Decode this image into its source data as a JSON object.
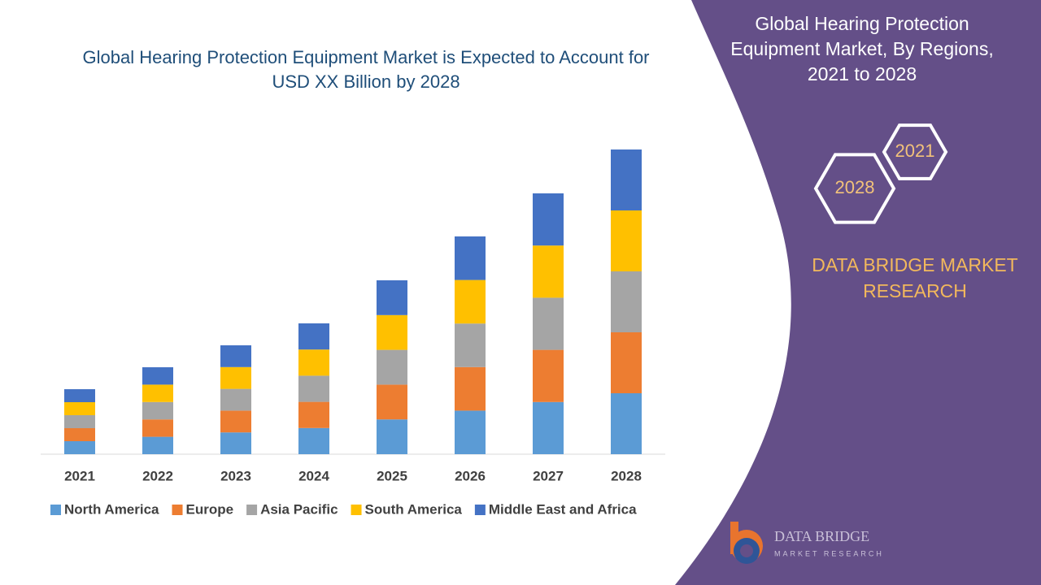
{
  "chart_data": {
    "type": "bar",
    "stacked": true,
    "title": "Global Hearing Protection Equipment Market is Expected to Account for USD XX Billion by 2028",
    "categories": [
      "2021",
      "2022",
      "2023",
      "2024",
      "2025",
      "2026",
      "2027",
      "2028"
    ],
    "series": [
      {
        "name": "North America",
        "color": "#5b9bd5",
        "values": [
          16,
          21.4,
          26.8,
          32.2,
          42.8,
          53.6,
          64.2,
          75
        ]
      },
      {
        "name": "Europe",
        "color": "#ed7d31",
        "values": [
          16,
          21.4,
          26.8,
          32.2,
          42.8,
          53.6,
          64.2,
          75
        ]
      },
      {
        "name": "Asia Pacific",
        "color": "#a5a5a5",
        "values": [
          16,
          21.4,
          26.8,
          32.2,
          42.8,
          53.6,
          64.2,
          75
        ]
      },
      {
        "name": "South America",
        "color": "#ffc000",
        "values": [
          16,
          21.4,
          26.8,
          32.2,
          42.8,
          53.6,
          64.2,
          75
        ]
      },
      {
        "name": "Middle East and Africa",
        "color": "#4472c4",
        "values": [
          16,
          21.4,
          26.8,
          32.2,
          42.8,
          53.6,
          64.2,
          75
        ]
      }
    ],
    "ylim": [
      0,
      400
    ],
    "legend": "bottom"
  },
  "panel": {
    "title": "Global Hearing Protection Equipment Market, By Regions, 2021 to 2028",
    "hexagons": [
      "2021",
      "2028"
    ],
    "brand": "DATA BRIDGE MARKET RESEARCH"
  },
  "logo": {
    "name": "DATA BRIDGE",
    "tagline": "MARKET RESEARCH"
  }
}
